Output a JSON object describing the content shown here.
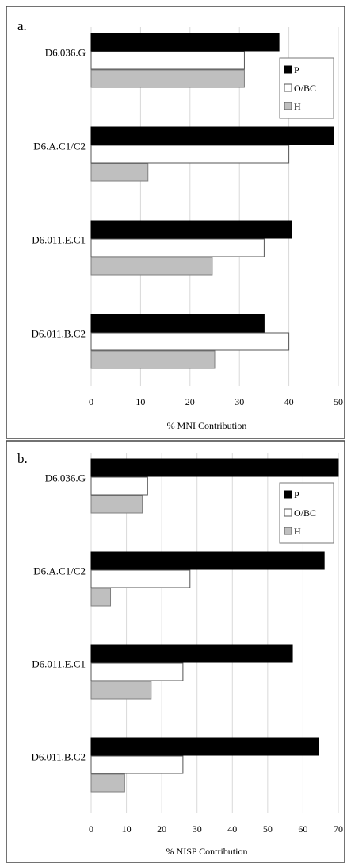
{
  "chart_data": [
    {
      "panel_label": "a.",
      "type": "bar",
      "orientation": "horizontal",
      "categories": [
        "D6.036.G",
        "D6.A.C1/C2",
        "D6.011.E.C1",
        "D6.011.B.C2"
      ],
      "series": [
        {
          "name": "P",
          "values": [
            38,
            49,
            40.5,
            35
          ],
          "color": "#000000"
        },
        {
          "name": "O/BC",
          "values": [
            31,
            40,
            35,
            40
          ],
          "color": "#ffffff"
        },
        {
          "name": "H",
          "values": [
            31,
            11.5,
            24.5,
            25
          ],
          "color": "#bfbfbf"
        }
      ],
      "xlabel": "% MNI Contribution",
      "xticks": [
        0,
        10,
        20,
        30,
        40,
        50
      ],
      "xlim": [
        0,
        50
      ],
      "grid": "vertical",
      "legend": "top-right"
    },
    {
      "panel_label": "b.",
      "type": "bar",
      "orientation": "horizontal",
      "categories": [
        "D6.036.G",
        "D6.A.C1/C2",
        "D6.011.E.C1",
        "D6.011.B.C2"
      ],
      "series": [
        {
          "name": "P",
          "values": [
            70,
            66,
            57,
            64.5
          ],
          "color": "#000000"
        },
        {
          "name": "O/BC",
          "values": [
            16,
            28,
            26,
            26
          ],
          "color": "#ffffff"
        },
        {
          "name": "H",
          "values": [
            14.5,
            5.5,
            17,
            9.5
          ],
          "color": "#bfbfbf"
        }
      ],
      "xlabel": "% NISP Contribution",
      "xticks": [
        0,
        10,
        20,
        30,
        40,
        50,
        60,
        70
      ],
      "xlim": [
        0,
        70
      ],
      "grid": "vertical",
      "legend": "top-right"
    }
  ]
}
